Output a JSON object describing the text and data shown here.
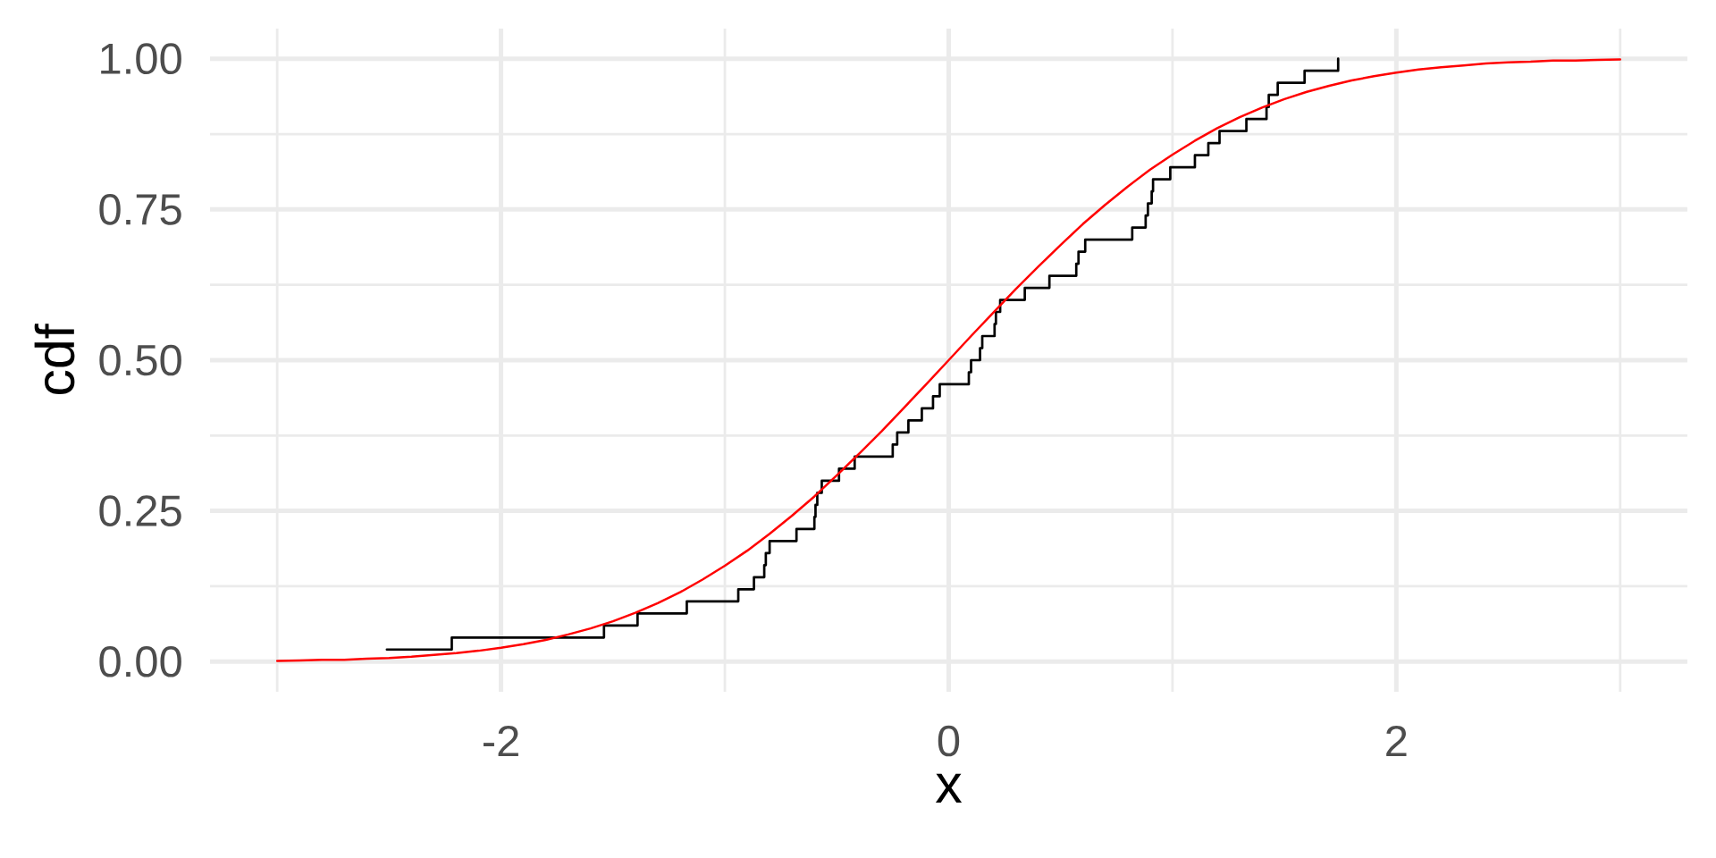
{
  "chart_data": {
    "type": "step",
    "xlabel": "x",
    "ylabel": "cdf",
    "xlim": [
      -3.3,
      3.3
    ],
    "ylim": [
      -0.05,
      1.05
    ],
    "xticks": [
      -2,
      0,
      2
    ],
    "yticks": [
      {
        "value": 0,
        "label": "0.00"
      },
      {
        "value": 0.25,
        "label": "0.25"
      },
      {
        "value": 0.5,
        "label": "0.50"
      },
      {
        "value": 0.75,
        "label": "0.75"
      },
      {
        "value": 1,
        "label": "1.00"
      }
    ],
    "grid": true,
    "series": [
      {
        "color": "#000000",
        "x": [
          -2.51,
          -2.22,
          -1.54,
          -1.39,
          -1.17,
          -0.94,
          -0.87,
          -0.824,
          -0.817,
          -0.8,
          -0.68,
          -0.6,
          -0.595,
          -0.587,
          -0.567,
          -0.49,
          -0.42,
          -0.25,
          -0.23,
          -0.18,
          -0.12,
          -0.07,
          -0.04,
          0.09,
          0.1,
          0.14,
          0.15,
          0.205,
          0.211,
          0.23,
          0.34,
          0.45,
          0.57,
          0.58,
          0.61,
          0.82,
          0.88,
          0.89,
          0.907,
          0.913,
          0.99,
          1.1,
          1.16,
          1.21,
          1.33,
          1.42,
          1.43,
          1.47,
          1.59,
          1.74
        ],
        "values": [
          0.02,
          0.04,
          0.06,
          0.08,
          0.1,
          0.12,
          0.14,
          0.16,
          0.18,
          0.2,
          0.22,
          0.24,
          0.26,
          0.28,
          0.3,
          0.32,
          0.34,
          0.36,
          0.38,
          0.4,
          0.42,
          0.44,
          0.46,
          0.48,
          0.5,
          0.52,
          0.54,
          0.56,
          0.58,
          0.6,
          0.62,
          0.64,
          0.66,
          0.68,
          0.7,
          0.72,
          0.74,
          0.76,
          0.78,
          0.8,
          0.82,
          0.84,
          0.86,
          0.88,
          0.9,
          0.92,
          0.94,
          0.96,
          0.98,
          1.0
        ]
      },
      {
        "type": "line",
        "color": "#ff0000",
        "x": [
          -3.0,
          -2.9,
          -2.8,
          -2.7,
          -2.6,
          -2.5,
          -2.4,
          -2.3,
          -2.2,
          -2.1,
          -2.0,
          -1.9,
          -1.8,
          -1.7,
          -1.6,
          -1.5,
          -1.4,
          -1.3,
          -1.2,
          -1.1,
          -1.0,
          -0.9,
          -0.8,
          -0.7,
          -0.6,
          -0.5,
          -0.4,
          -0.3,
          -0.2,
          -0.1,
          0.0,
          0.1,
          0.2,
          0.3,
          0.4,
          0.5,
          0.6,
          0.7,
          0.8,
          0.9,
          1.0,
          1.1,
          1.2,
          1.3,
          1.4,
          1.5,
          1.6,
          1.7,
          1.8,
          1.9,
          2.0,
          2.1,
          2.2,
          2.3,
          2.4,
          2.5,
          2.6,
          2.7,
          2.8,
          2.9,
          3.0
        ],
        "values": [
          0.001,
          0.002,
          0.003,
          0.003,
          0.005,
          0.006,
          0.008,
          0.011,
          0.014,
          0.018,
          0.023,
          0.029,
          0.036,
          0.045,
          0.055,
          0.067,
          0.081,
          0.097,
          0.115,
          0.136,
          0.159,
          0.184,
          0.212,
          0.242,
          0.274,
          0.309,
          0.345,
          0.382,
          0.421,
          0.46,
          0.5,
          0.54,
          0.579,
          0.618,
          0.655,
          0.691,
          0.726,
          0.758,
          0.788,
          0.816,
          0.841,
          0.864,
          0.885,
          0.903,
          0.919,
          0.933,
          0.945,
          0.955,
          0.964,
          0.971,
          0.977,
          0.982,
          0.986,
          0.989,
          0.992,
          0.994,
          0.995,
          0.997,
          0.997,
          0.998,
          0.999
        ]
      }
    ]
  }
}
